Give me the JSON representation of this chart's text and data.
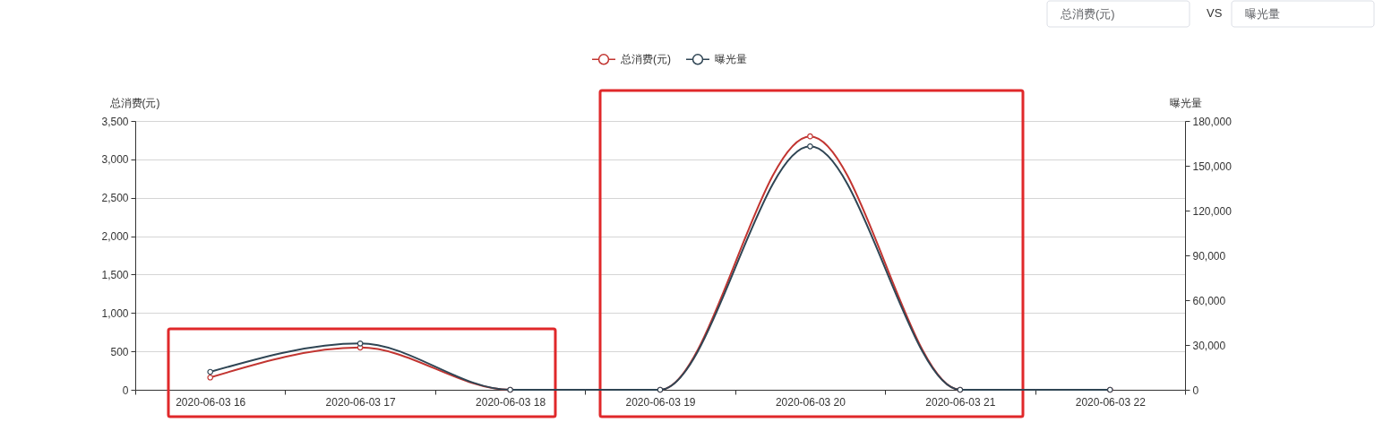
{
  "chart_data": {
    "type": "line",
    "categories": [
      "2020-06-03 16",
      "2020-06-03 17",
      "2020-06-03 18",
      "2020-06-03 19",
      "2020-06-03 20",
      "2020-06-03 21",
      "2020-06-03 22"
    ],
    "series": [
      {
        "name": "总消费(元)",
        "color": "#c23531",
        "values": [
          160,
          550,
          0,
          0,
          3300,
          0,
          0
        ]
      },
      {
        "name": "曝光量",
        "color": "#2f4554",
        "axis": "y2",
        "values": [
          12000,
          31000,
          0,
          0,
          163000,
          0,
          0
        ]
      }
    ],
    "ylabel": "总消费(元)",
    "y2label": "曝光量",
    "ylim": [
      0,
      3500
    ],
    "yticks": [
      0,
      {
        "value": 500,
        "label": "500"
      },
      {
        "value": 1000,
        "label": "1,000"
      },
      {
        "value": 1500,
        "label": "1,500"
      },
      {
        "value": 2000,
        "label": "2,000"
      },
      {
        "value": 2500,
        "label": "2,500"
      },
      {
        "value": 3000,
        "label": "3,000"
      },
      {
        "value": 3500,
        "label": "3,500"
      }
    ],
    "y2lim": [
      0,
      180000
    ],
    "y2ticks": [
      0,
      {
        "value": 30000,
        "label": "30,000"
      },
      {
        "value": 60000,
        "label": "60,000"
      },
      {
        "value": 90000,
        "label": "90,000"
      },
      {
        "value": 120000,
        "label": "120,000"
      },
      {
        "value": 150000,
        "label": "150,000"
      },
      {
        "value": 180000,
        "label": "180,000"
      }
    ],
    "grid": "y",
    "legend": "top",
    "marker": "circle",
    "line_style": "solid",
    "annotations": [
      "总消费(元)",
      "VS",
      "曝光量"
    ]
  }
}
